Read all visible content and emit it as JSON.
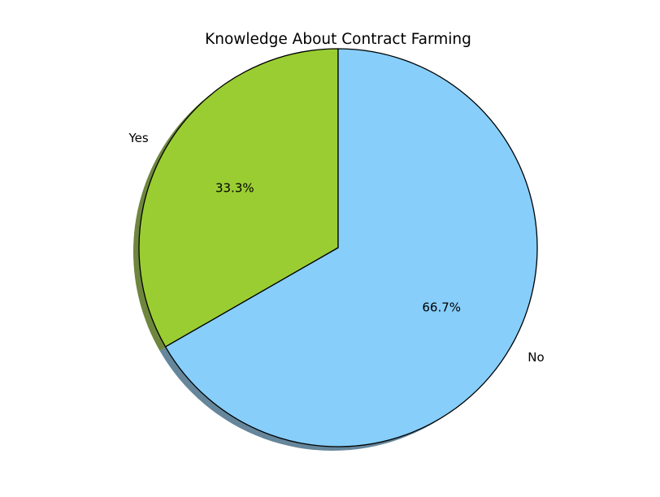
{
  "chart_data": {
    "type": "pie",
    "title": "Knowledge About Contract Farming",
    "slices": [
      {
        "label": "Yes",
        "value": 33.3,
        "pct_label": "33.3%",
        "color": "#9ACD32"
      },
      {
        "label": "No",
        "value": 66.7,
        "pct_label": "66.7%",
        "color": "#87CEFA"
      }
    ],
    "start_angle_deg": 90,
    "direction": "counterclockwise",
    "shadow": true,
    "edge_color": "#000000",
    "legend": false
  }
}
